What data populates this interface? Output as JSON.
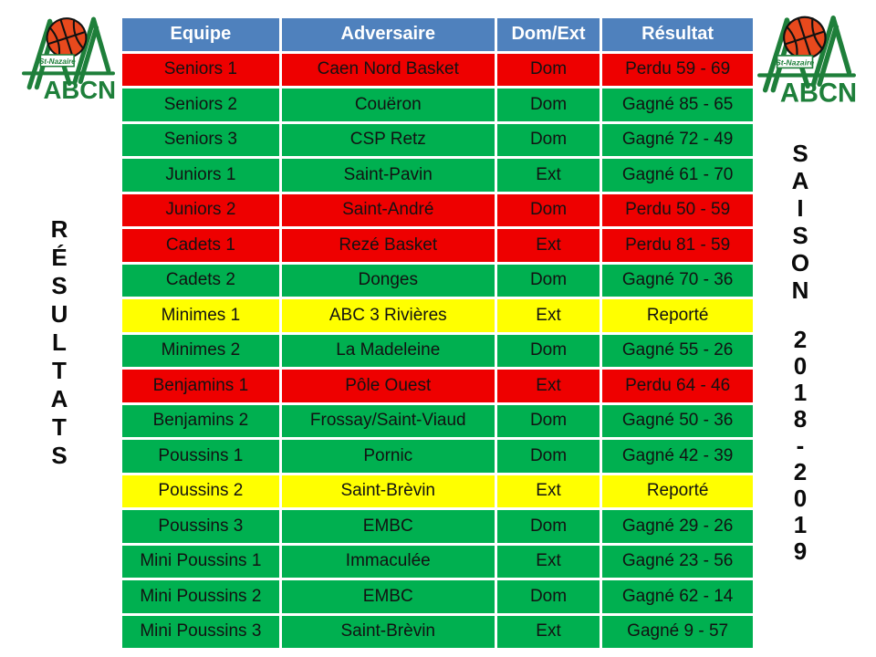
{
  "page": {
    "background": "#FFFFFF"
  },
  "left_panel": {
    "vertical_title": "RÉSULTATS"
  },
  "right_panel": {
    "vertical_title_line1": "SAISON",
    "vertical_title_line2": "2018-2019"
  },
  "logo": {
    "club_short": "ABCN",
    "city": "St-Nazaire"
  },
  "colors": {
    "header_bg": "#4F81BD",
    "header_text": "#FFFFFF",
    "win": "#00B050",
    "loss": "#EE0000",
    "postponed": "#FFFF00",
    "cell_text": "#121212",
    "logo_green": "#1E7F3A",
    "ball_orange": "#E8491D"
  },
  "table": {
    "columns": [
      "Equipe",
      "Adversaire",
      "Dom/Ext",
      "Résultat"
    ],
    "rows": [
      {
        "equipe": "Seniors 1",
        "adversaire": "Caen Nord Basket",
        "dom_ext": "Dom",
        "resultat": "Perdu 59 - 69",
        "status": "loss"
      },
      {
        "equipe": "Seniors 2",
        "adversaire": "Couëron",
        "dom_ext": "Dom",
        "resultat": "Gagné 85 - 65",
        "status": "win"
      },
      {
        "equipe": "Seniors 3",
        "adversaire": "CSP Retz",
        "dom_ext": "Dom",
        "resultat": "Gagné 72 - 49",
        "status": "win"
      },
      {
        "equipe": "Juniors 1",
        "adversaire": "Saint-Pavin",
        "dom_ext": "Ext",
        "resultat": "Gagné 61 - 70",
        "status": "win"
      },
      {
        "equipe": "Juniors 2",
        "adversaire": "Saint-André",
        "dom_ext": "Dom",
        "resultat": "Perdu 50 - 59",
        "status": "loss"
      },
      {
        "equipe": "Cadets 1",
        "adversaire": "Rezé Basket",
        "dom_ext": "Ext",
        "resultat": "Perdu 81 - 59",
        "status": "loss"
      },
      {
        "equipe": "Cadets 2",
        "adversaire": "Donges",
        "dom_ext": "Dom",
        "resultat": "Gagné 70 - 36",
        "status": "win"
      },
      {
        "equipe": "Minimes 1",
        "adversaire": "ABC 3 Rivières",
        "dom_ext": "Ext",
        "resultat": "Reporté",
        "status": "postponed"
      },
      {
        "equipe": "Minimes 2",
        "adversaire": "La Madeleine",
        "dom_ext": "Dom",
        "resultat": "Gagné 55 - 26",
        "status": "win"
      },
      {
        "equipe": "Benjamins 1",
        "adversaire": "Pôle Ouest",
        "dom_ext": "Ext",
        "resultat": "Perdu 64 - 46",
        "status": "loss"
      },
      {
        "equipe": "Benjamins 2",
        "adversaire": "Frossay/Saint-Viaud",
        "dom_ext": "Dom",
        "resultat": "Gagné 50 - 36",
        "status": "win"
      },
      {
        "equipe": "Poussins 1",
        "adversaire": "Pornic",
        "dom_ext": "Dom",
        "resultat": "Gagné 42 - 39",
        "status": "win"
      },
      {
        "equipe": "Poussins 2",
        "adversaire": "Saint-Brèvin",
        "dom_ext": "Ext",
        "resultat": "Reporté",
        "status": "postponed"
      },
      {
        "equipe": "Poussins 3",
        "adversaire": "EMBC",
        "dom_ext": "Dom",
        "resultat": "Gagné 29 - 26",
        "status": "win"
      },
      {
        "equipe": "Mini Poussins 1",
        "adversaire": "Immaculée",
        "dom_ext": "Ext",
        "resultat": "Gagné 23 - 56",
        "status": "win"
      },
      {
        "equipe": "Mini Poussins 2",
        "adversaire": "EMBC",
        "dom_ext": "Dom",
        "resultat": "Gagné 62 - 14",
        "status": "win"
      },
      {
        "equipe": "Mini Poussins 3",
        "adversaire": "Saint-Brèvin",
        "dom_ext": "Ext",
        "resultat": "Gagné 9 - 57",
        "status": "win"
      }
    ]
  }
}
